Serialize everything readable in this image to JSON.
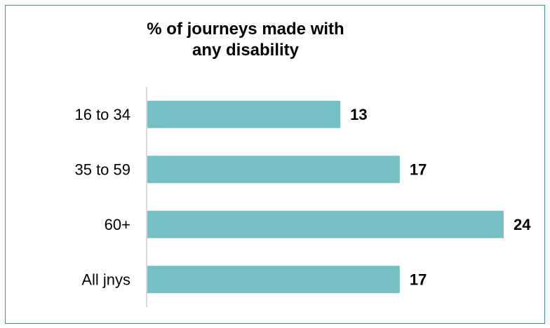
{
  "chart_data": {
    "type": "bar",
    "orientation": "horizontal",
    "title_lines": [
      "% of journeys made with",
      "any disability"
    ],
    "categories": [
      "16 to 34",
      "35 to 59",
      "60+",
      "All jnys"
    ],
    "values": [
      13,
      17,
      24,
      17
    ],
    "xlim": [
      0,
      24
    ],
    "bar_color": "#74c0c3",
    "axis_color": "#d9d9d9",
    "grid": false,
    "data_labels": true
  }
}
